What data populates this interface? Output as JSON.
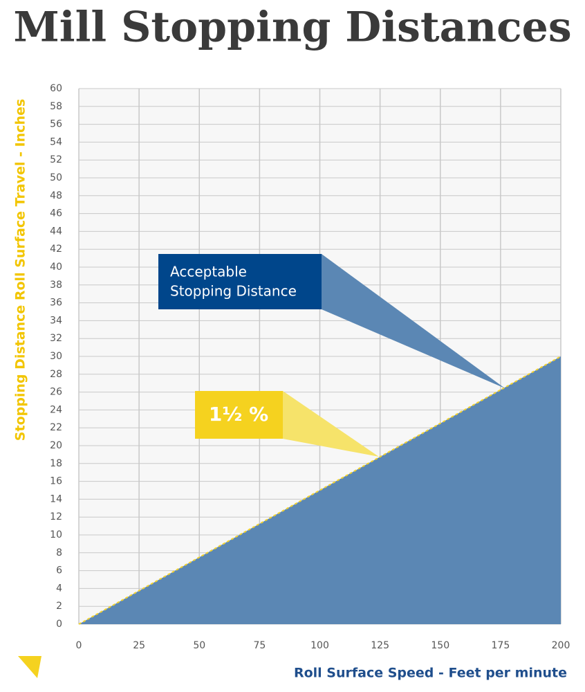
{
  "chart_data": {
    "type": "area",
    "title": "Mill Stopping Distances",
    "x_label": "Roll Surface Speed - Feet per minute",
    "y_label": "Stopping Distance Roll Surface Travel - Inches",
    "x": [
      0,
      200
    ],
    "values": [
      0,
      30
    ],
    "color": "#5b87b4",
    "line_color": "#f2d22e",
    "xlim": [
      0,
      200
    ],
    "ylim": [
      0,
      60
    ],
    "xticks": [
      0,
      25,
      50,
      75,
      100,
      125,
      150,
      175,
      200
    ],
    "yticks": [
      0,
      2,
      4,
      6,
      8,
      10,
      12,
      14,
      16,
      18,
      20,
      22,
      24,
      26,
      28,
      30,
      32,
      34,
      36,
      38,
      40,
      42,
      44,
      46,
      48,
      50,
      52,
      54,
      56,
      58,
      60
    ],
    "grid": true,
    "annotations": [
      {
        "lines": [
          "Acceptable",
          "Stopping Distance"
        ]
      },
      {
        "lines": [
          "1½ %"
        ]
      }
    ]
  }
}
